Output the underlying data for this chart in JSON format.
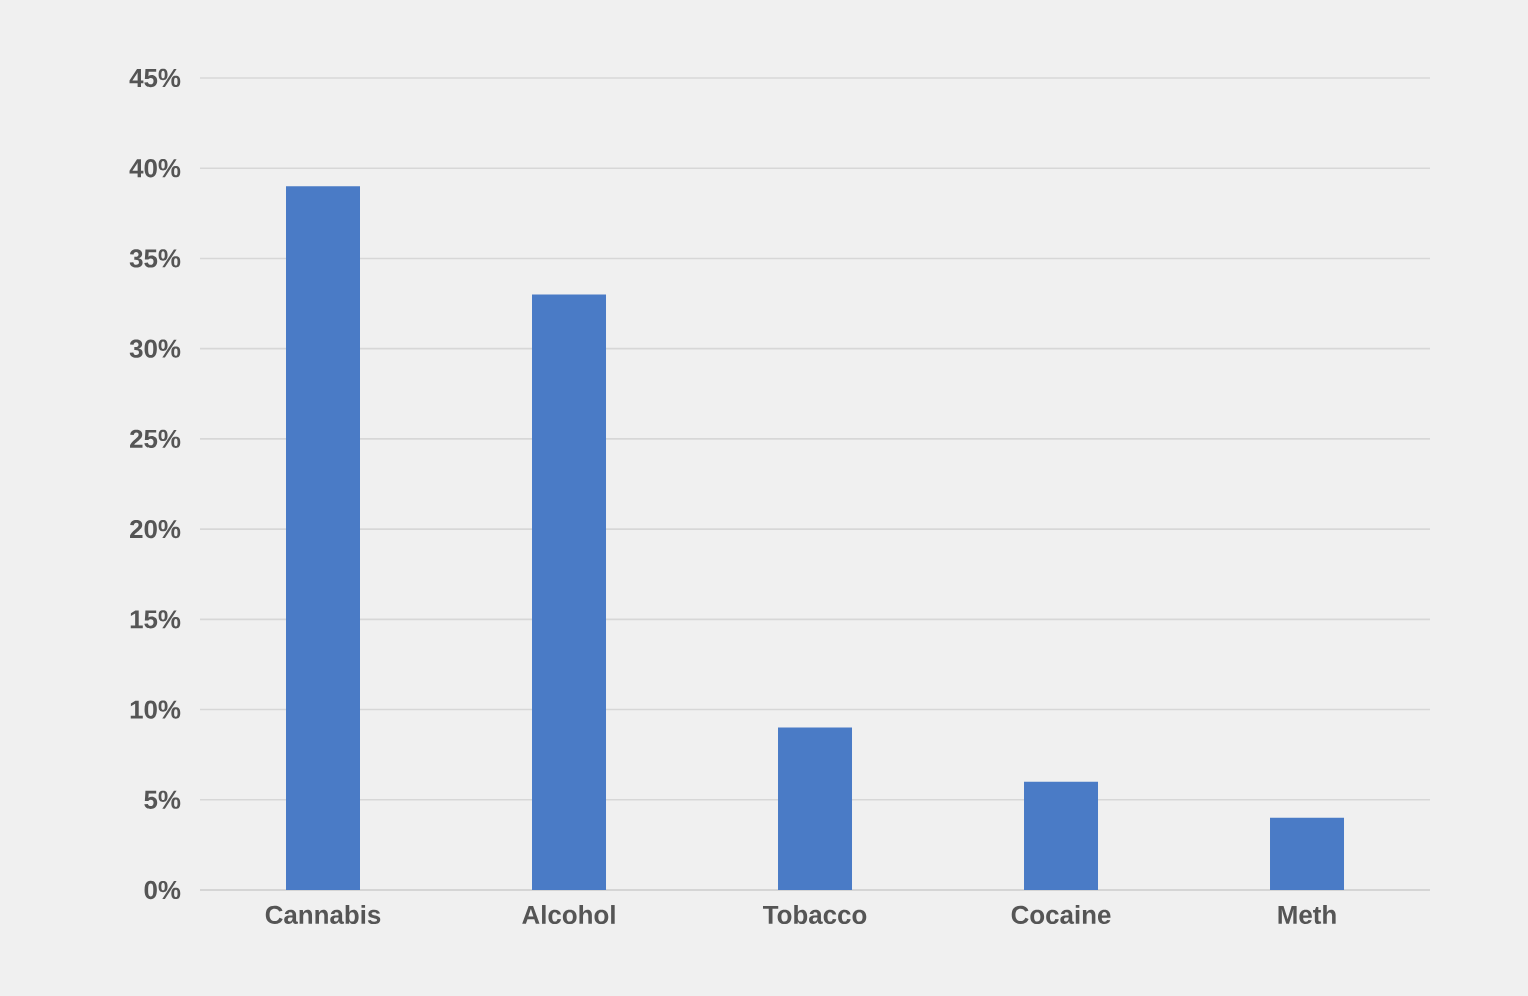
{
  "chart_data": {
    "type": "bar",
    "categories": [
      "Cannabis",
      "Alcohol",
      "Tobacco",
      "Cocaine",
      "Meth"
    ],
    "values": [
      39,
      33,
      9,
      6,
      4
    ],
    "color": "#4a7bc6",
    "ylim": [
      0,
      45
    ],
    "yticks": [
      {
        "value": 0,
        "label": "0%"
      },
      {
        "value": 5,
        "label": "5%"
      },
      {
        "value": 10,
        "label": "10%"
      },
      {
        "value": 15,
        "label": "15%"
      },
      {
        "value": 20,
        "label": "20%"
      },
      {
        "value": 25,
        "label": "25%"
      },
      {
        "value": 30,
        "label": "30%"
      },
      {
        "value": 35,
        "label": "35%"
      },
      {
        "value": 40,
        "label": "40%"
      },
      {
        "value": 45,
        "label": "45%"
      }
    ],
    "grid": "y"
  }
}
